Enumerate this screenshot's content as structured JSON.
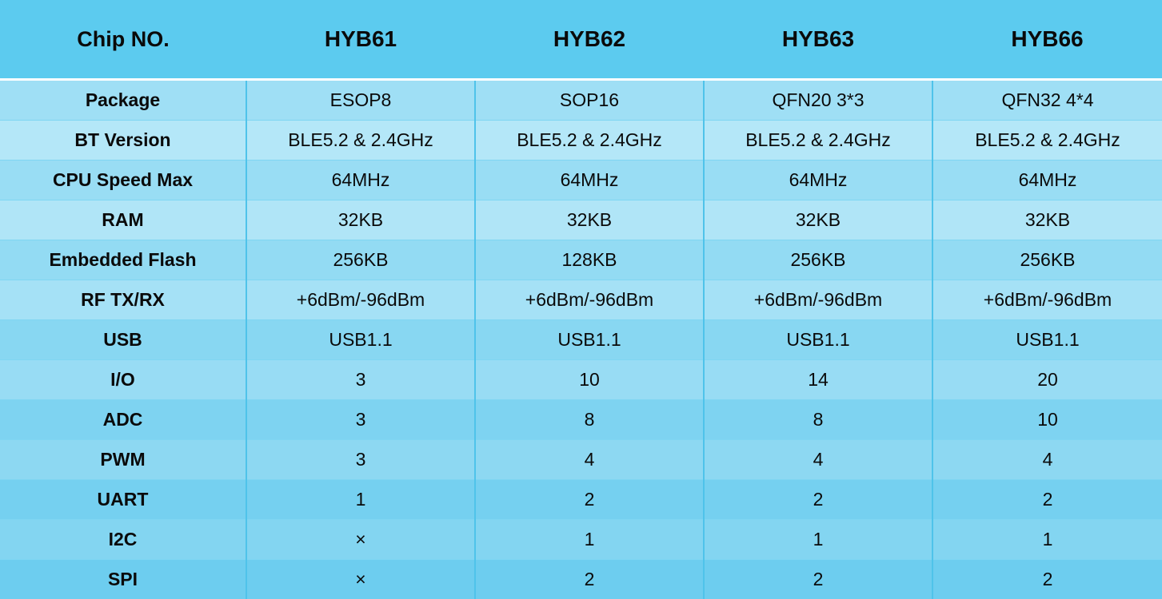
{
  "table": {
    "header": [
      "Chip NO.",
      "HYB61",
      "HYB62",
      "HYB63",
      "HYB66"
    ],
    "rows": [
      {
        "label": "Package",
        "values": [
          "ESOP8",
          "SOP16",
          "QFN20 3*3",
          "QFN32 4*4"
        ]
      },
      {
        "label": "BT Version",
        "values": [
          "BLE5.2 & 2.4GHz",
          "BLE5.2 & 2.4GHz",
          "BLE5.2 & 2.4GHz",
          "BLE5.2 & 2.4GHz"
        ]
      },
      {
        "label": "CPU Speed Max",
        "values": [
          "64MHz",
          "64MHz",
          "64MHz",
          "64MHz"
        ]
      },
      {
        "label": "RAM",
        "values": [
          "32KB",
          "32KB",
          "32KB",
          "32KB"
        ]
      },
      {
        "label": "Embedded Flash",
        "values": [
          "256KB",
          "128KB",
          "256KB",
          "256KB"
        ]
      },
      {
        "label": "RF TX/RX",
        "values": [
          "+6dBm/-96dBm",
          "+6dBm/-96dBm",
          "+6dBm/-96dBm",
          "+6dBm/-96dBm"
        ]
      },
      {
        "label": "USB",
        "values": [
          "USB1.1",
          "USB1.1",
          "USB1.1",
          "USB1.1"
        ]
      },
      {
        "label": "I/O",
        "values": [
          "3",
          "10",
          "14",
          "20"
        ]
      },
      {
        "label": "ADC",
        "values": [
          "3",
          "8",
          "8",
          "10"
        ]
      },
      {
        "label": "PWM",
        "values": [
          "3",
          "4",
          "4",
          "4"
        ]
      },
      {
        "label": "UART",
        "values": [
          "1",
          "2",
          "2",
          "2"
        ]
      },
      {
        "label": "I2C",
        "values": [
          "×",
          "1",
          "1",
          "1"
        ]
      },
      {
        "label": "SPI",
        "values": [
          "×",
          "2",
          "2",
          "2"
        ]
      }
    ]
  }
}
